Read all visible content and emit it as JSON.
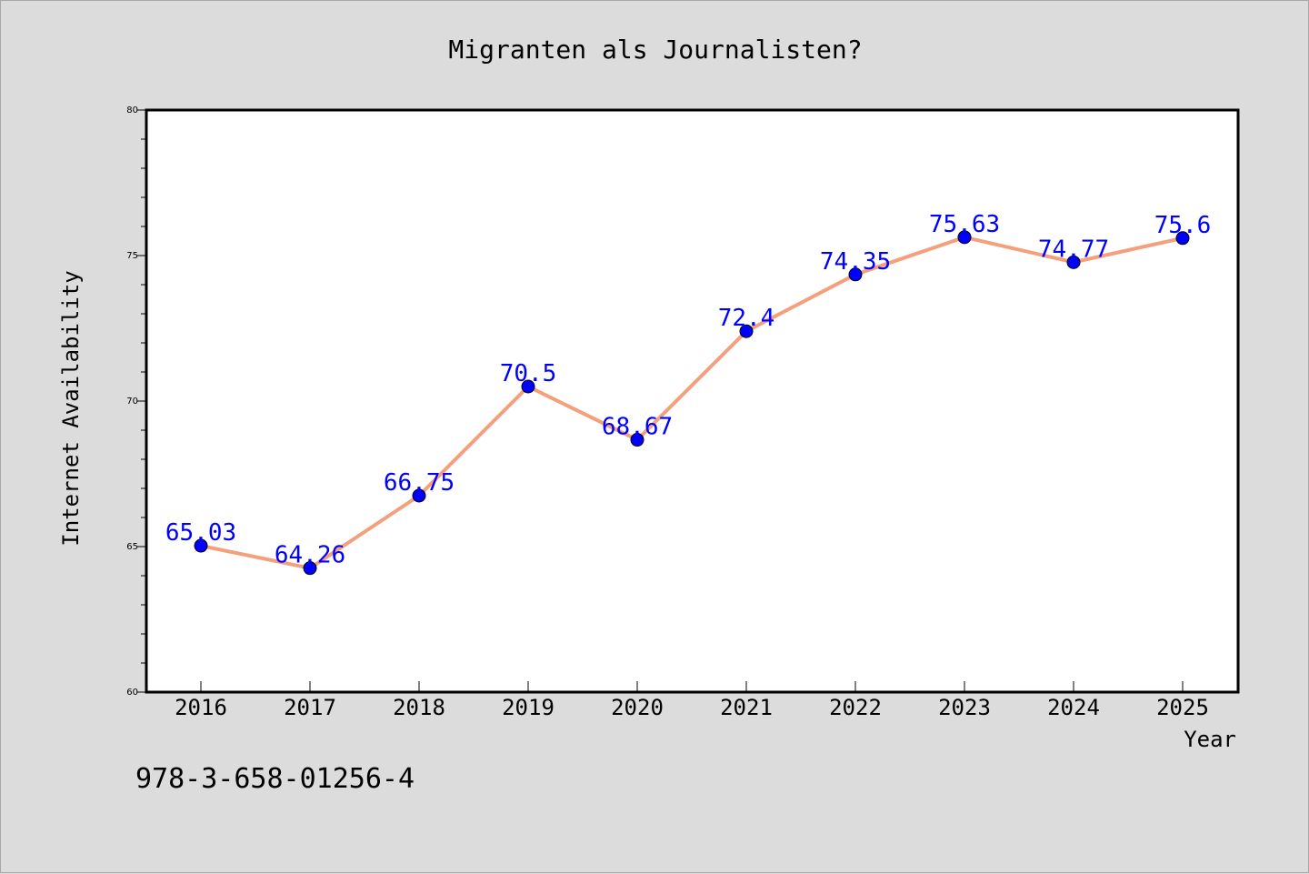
{
  "chart_data": {
    "type": "line",
    "title": "Migranten als Journalisten?",
    "xlabel": "Year",
    "ylabel": "Internet Availability",
    "x": [
      "2016",
      "2017",
      "2018",
      "2019",
      "2020",
      "2021",
      "2022",
      "2023",
      "2024",
      "2025"
    ],
    "series": [
      {
        "values": [
          65.03,
          64.26,
          66.75,
          70.5,
          68.67,
          72.4,
          74.35,
          75.63,
          74.77,
          75.6
        ],
        "labels": [
          "65.03",
          "64.26",
          "66.75",
          "70.5",
          "68.67",
          "72.4",
          "74.35",
          "75.63",
          "74.77",
          "75.6"
        ],
        "line_color": "#f4a07c",
        "marker_color": "#0000ff"
      }
    ],
    "ylim": [
      60,
      80
    ],
    "yticks": [
      60,
      65,
      70,
      75,
      80
    ],
    "grid": false,
    "legend": "none"
  },
  "footer": {
    "isbn": "978-3-658-01256-4"
  }
}
